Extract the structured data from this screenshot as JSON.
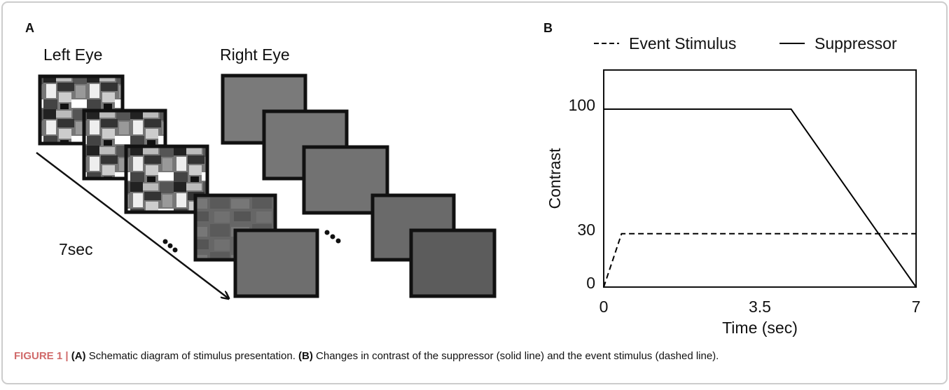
{
  "panel_a": {
    "label": "A",
    "left_eye": "Left Eye",
    "right_eye": "Right Eye",
    "duration": "7sec"
  },
  "chart_data": {
    "type": "line",
    "panel_label": "B",
    "x_label": "Time (sec)",
    "y_label": "Contrast",
    "xlim": [
      0,
      7
    ],
    "xticks": [
      0,
      3.5,
      7
    ],
    "ylim": [
      0,
      122
    ],
    "yticks": [
      0,
      30,
      100
    ],
    "legend": "top",
    "series": [
      {
        "name": "Event Stimulus",
        "color": "#000000",
        "dashed": true,
        "x": [
          0,
          0.4,
          7
        ],
        "values": [
          0,
          30,
          30
        ]
      },
      {
        "name": "Suppressor",
        "color": "#000000",
        "dashed": false,
        "x": [
          0,
          4.2,
          7
        ],
        "values": [
          100,
          100,
          0
        ]
      }
    ]
  },
  "caption": {
    "label": "FIGURE 1 |",
    "a_label": "(A)",
    "a_text": "Schematic diagram of stimulus presentation.",
    "b_label": "(B)",
    "b_text": "Changes in contrast of the suppressor (solid line) and the event stimulus (dashed line)."
  }
}
